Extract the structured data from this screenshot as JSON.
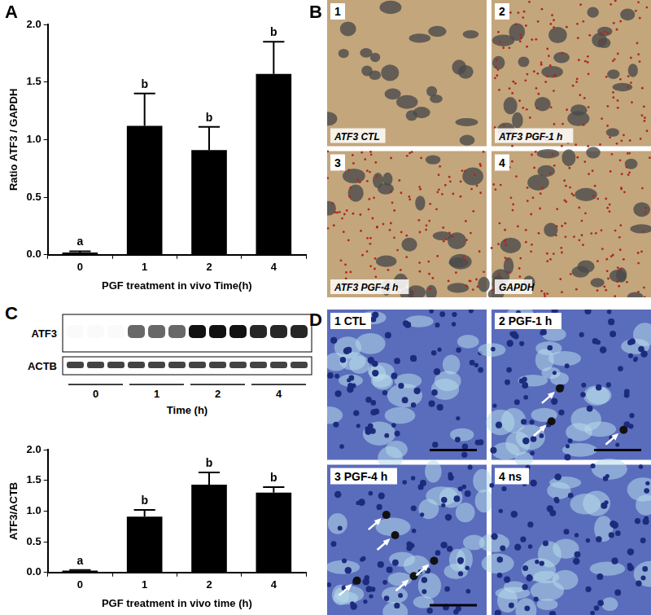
{
  "panel_labels": [
    "A",
    "B",
    "C",
    "D"
  ],
  "chart_data": [
    {
      "type": "bar",
      "categories": [
        "0",
        "1",
        "2",
        "4"
      ],
      "values": [
        0.02,
        1.12,
        0.91,
        1.57
      ],
      "errors": [
        0.01,
        0.28,
        0.2,
        0.28
      ],
      "significance": [
        "a",
        "b",
        "b",
        "b"
      ],
      "color": "#000000",
      "x_label": "PGF treatment in vivo Time(h)",
      "y_label": "Ratio ATF3 / GAPDH",
      "ylim": [
        0,
        2
      ],
      "yticks": [
        {
          "value": 0,
          "label": "0.0"
        },
        0.5,
        {
          "value": 1,
          "label": "1.0"
        },
        1.5,
        {
          "value": 2,
          "label": "2.0"
        }
      ],
      "grid": false
    },
    {
      "type": "bar",
      "categories": [
        "0",
        "1",
        "2",
        "4"
      ],
      "values": [
        0.03,
        0.91,
        1.43,
        1.3
      ],
      "errors": [
        0.01,
        0.11,
        0.2,
        0.09
      ],
      "significance": [
        "a",
        "b",
        "b",
        "b"
      ],
      "color": "#000000",
      "x_label": "PGF treatment in vivo time (h)",
      "y_label": "ATF3/ACTB",
      "ylim": [
        0,
        2
      ],
      "yticks": [
        {
          "value": 0,
          "label": "0.0"
        },
        0.5,
        {
          "value": 1,
          "label": "1.0"
        },
        1.5,
        {
          "value": 2,
          "label": "2.0"
        }
      ],
      "grid": false
    }
  ],
  "blot": {
    "rows": [
      "ATF3",
      "ACTB"
    ],
    "groups": [
      "0",
      "1",
      "2",
      "4"
    ],
    "x_label": "Time (h)"
  },
  "micrographs_B": [
    {
      "number": "1",
      "label": "ATF3 CTL"
    },
    {
      "number": "2",
      "label": "ATF3 PGF-1 h"
    },
    {
      "number": "3",
      "label": "ATF3 PGF-4 h"
    },
    {
      "number": "4",
      "label": "GAPDH"
    }
  ],
  "micrographs_D": [
    {
      "number": "1",
      "label": "CTL"
    },
    {
      "number": "2",
      "label": "PGF-1 h"
    },
    {
      "number": "3",
      "label": "PGF-4 h"
    },
    {
      "number": "4",
      "label": "ns"
    }
  ]
}
